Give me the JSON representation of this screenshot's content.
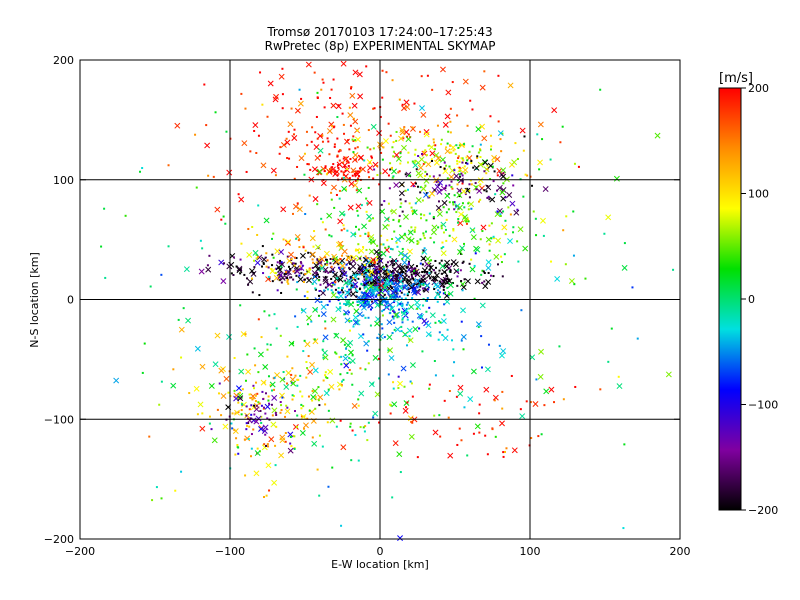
{
  "chart_data": {
    "type": "scatter",
    "title": "Tromsø 20170103 17:24:00–17:25:43",
    "subtitle": "RwPretec (8p) EXPERIMENTAL SKYMAP",
    "xlabel": "E-W location [km]",
    "ylabel": "N-S location [km]",
    "xlim": [
      -200,
      200
    ],
    "ylim": [
      -200,
      200
    ],
    "xticks": [
      "−200",
      "−100",
      "0",
      "100",
      "200"
    ],
    "yticks": [
      "−200",
      "−100",
      "0",
      "100",
      "200"
    ],
    "grid_lines": [
      -100,
      0,
      100
    ],
    "colorbar": {
      "unit": "[m/s]",
      "min": -200,
      "max": 200,
      "ticks": [
        "200",
        "100",
        "0",
        "−100",
        "−200"
      ],
      "colors": [
        "#ff0000",
        "#ff8c00",
        "#ffff00",
        "#00e000",
        "#00e0e0",
        "#0000ff",
        "#8000a0",
        "#000000"
      ]
    },
    "clusters": [
      {
        "cx": -20,
        "cy": 140,
        "sx": 55,
        "sy": 40,
        "n": 260,
        "v": 190
      },
      {
        "cx": -25,
        "cy": 110,
        "sx": 12,
        "sy": 8,
        "n": 80,
        "v": 200
      },
      {
        "cx": 40,
        "cy": 115,
        "sx": 30,
        "sy": 12,
        "n": 160,
        "v": 80
      },
      {
        "cx": 55,
        "cy": 95,
        "sx": 25,
        "sy": 12,
        "n": 110,
        "v": -170
      },
      {
        "cx": 40,
        "cy": 60,
        "sx": 35,
        "sy": 20,
        "n": 220,
        "v": 40
      },
      {
        "cx": 10,
        "cy": 20,
        "sx": 25,
        "sy": 8,
        "n": 380,
        "v": -200
      },
      {
        "cx": 0,
        "cy": 5,
        "sx": 20,
        "sy": 12,
        "n": 320,
        "v": -50
      },
      {
        "cx": -60,
        "cy": 25,
        "sx": 25,
        "sy": 8,
        "n": 140,
        "v": -180
      },
      {
        "cx": -40,
        "cy": 35,
        "sx": 25,
        "sy": 12,
        "n": 120,
        "v": 110
      },
      {
        "cx": -75,
        "cy": -90,
        "sx": 25,
        "sy": 30,
        "n": 180,
        "v": 120
      },
      {
        "cx": -80,
        "cy": -95,
        "sx": 15,
        "sy": 15,
        "n": 60,
        "v": -130
      },
      {
        "cx": -45,
        "cy": -60,
        "sx": 30,
        "sy": 30,
        "n": 120,
        "v": 30
      },
      {
        "cx": 60,
        "cy": -100,
        "sx": 35,
        "sy": 20,
        "n": 60,
        "v": 190
      },
      {
        "cx": 20,
        "cy": -30,
        "sx": 25,
        "sy": 20,
        "n": 90,
        "v": -30
      },
      {
        "cx": 0,
        "cy": 0,
        "sx": 110,
        "sy": 100,
        "n": 220,
        "v": 0
      }
    ]
  }
}
